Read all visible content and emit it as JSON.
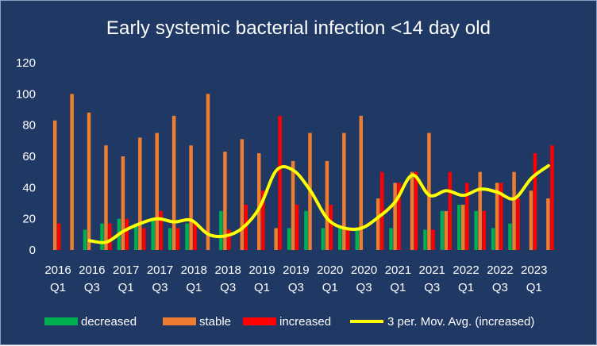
{
  "chart_data": {
    "type": "bar",
    "title": "Early systemic bacterial infection <14 day old",
    "xlabel": "",
    "ylabel": "",
    "ylim": [
      0,
      120
    ],
    "yticks": [
      "0",
      "20",
      "40",
      "60",
      "80",
      "100",
      "120"
    ],
    "grid": false,
    "legend_position": "bottom",
    "categories": [
      "2016 Q1",
      "2016 Q2",
      "2016 Q3",
      "2016 Q4",
      "2017 Q1",
      "2017 Q2",
      "2017 Q3",
      "2017 Q4",
      "2018 Q1",
      "2018 Q2",
      "2018 Q3",
      "2018 Q4",
      "2019 Q1",
      "2019 Q2",
      "2019 Q3",
      "2019 Q4",
      "2020 Q1",
      "2020 Q2",
      "2020 Q3",
      "2020 Q4",
      "2021 Q1",
      "2021 Q2",
      "2021 Q3",
      "2021 Q4",
      "2022 Q1",
      "2022 Q2",
      "2022 Q3",
      "2022 Q4",
      "2023 Q1",
      "2023 Q2",
      "2023 Q3"
    ],
    "tick_labels": [
      {
        "year": "2016",
        "quarter": "Q1",
        "index": 0
      },
      {
        "year": "2016",
        "quarter": "Q3",
        "index": 2
      },
      {
        "year": "2017",
        "quarter": "Q1",
        "index": 4
      },
      {
        "year": "2017",
        "quarter": "Q3",
        "index": 6
      },
      {
        "year": "2018",
        "quarter": "Q1",
        "index": 8
      },
      {
        "year": "2018",
        "quarter": "Q3",
        "index": 10
      },
      {
        "year": "2019",
        "quarter": "Q1",
        "index": 12
      },
      {
        "year": "2019",
        "quarter": "Q3",
        "index": 14
      },
      {
        "year": "2020",
        "quarter": "Q1",
        "index": 16
      },
      {
        "year": "2020",
        "quarter": "Q3",
        "index": 18
      },
      {
        "year": "2021",
        "quarter": "Q1",
        "index": 20
      },
      {
        "year": "2021",
        "quarter": "Q3",
        "index": 22
      },
      {
        "year": "2022",
        "quarter": "Q1",
        "index": 24
      },
      {
        "year": "2022",
        "quarter": "Q3",
        "index": 26
      },
      {
        "year": "2023",
        "quarter": "Q1",
        "index": 28
      }
    ],
    "series": [
      {
        "name": "decreased",
        "color": "#00b050",
        "values": [
          0,
          0,
          13,
          17,
          20,
          17,
          20,
          14,
          17,
          0,
          25,
          0,
          0,
          0,
          14,
          25,
          14,
          14,
          13,
          0,
          14,
          0,
          13,
          25,
          29,
          25,
          14,
          17,
          0,
          0,
          0
        ]
      },
      {
        "name": "stable",
        "color": "#ed7d31",
        "values": [
          83,
          100,
          88,
          67,
          60,
          72,
          75,
          86,
          67,
          100,
          63,
          71,
          62,
          14,
          57,
          75,
          57,
          75,
          86,
          33,
          43,
          50,
          75,
          25,
          29,
          50,
          43,
          50,
          38,
          33,
          0
        ]
      },
      {
        "name": "increased",
        "color": "#ff0000",
        "values": [
          17,
          0,
          0,
          17,
          20,
          14,
          25,
          14,
          17,
          0,
          13,
          29,
          38,
          86,
          29,
          0,
          29,
          14,
          0,
          50,
          43,
          50,
          13,
          50,
          43,
          25,
          43,
          33,
          62,
          67,
          0
        ]
      }
    ],
    "moving_average": {
      "name": "3 per. Mov. Avg. (increased)",
      "color": "#ffff00",
      "values": [
        null,
        null,
        6,
        5,
        12,
        17,
        20,
        18,
        19,
        10,
        9,
        14,
        27,
        51,
        51,
        38,
        20,
        14,
        14,
        21,
        31,
        48,
        35,
        38,
        35,
        39,
        37,
        33,
        46,
        54,
        null
      ]
    },
    "background": "#1f3864",
    "text_color": "#ffffff"
  }
}
